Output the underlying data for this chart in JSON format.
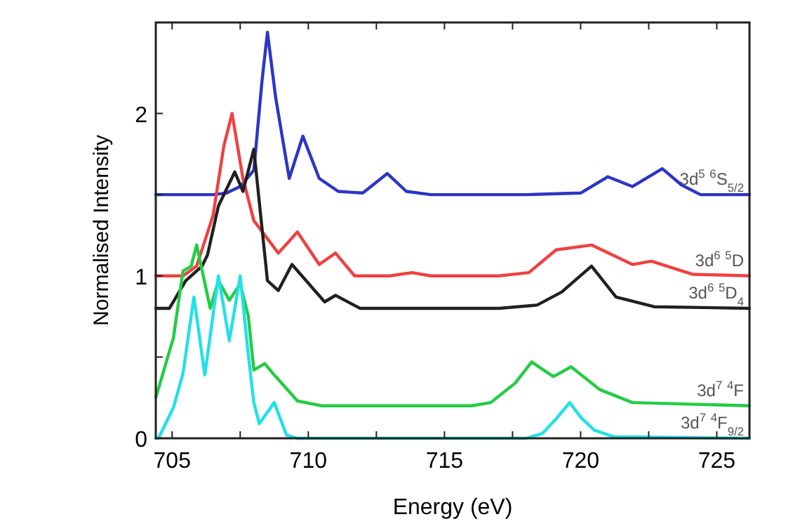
{
  "chart_data": {
    "type": "line",
    "xlabel": "Energy (eV)",
    "ylabel": "Normalised Intensity",
    "xlim": [
      704.4,
      726.2
    ],
    "ylim": [
      0,
      2.56
    ],
    "xticks": [
      705,
      {
        "value": 707.5,
        "label": null
      },
      710,
      {
        "value": 712.5,
        "label": null
      },
      715,
      {
        "value": 717.5,
        "label": null
      },
      720,
      {
        "value": 722.5,
        "label": null
      },
      725
    ],
    "yticks": [
      0,
      {
        "value": 0.5,
        "label": null
      },
      1,
      {
        "value": 1.5,
        "label": null
      },
      2
    ],
    "grid": false,
    "legend": false,
    "marker": "none",
    "line_style": "solid",
    "series": [
      {
        "name": "3d$^{5}$  $^{6}$S$_{5/2}$",
        "color": "#2b35c8",
        "x": [
          704.4,
          706.5,
          707.0,
          707.5,
          708.0,
          708.3,
          708.5,
          708.8,
          709.3,
          709.8,
          710.4,
          711.1,
          712.0,
          712.9,
          713.6,
          714.5,
          718,
          720.0,
          721.0,
          721.9,
          723.0,
          723.7,
          724.4,
          726.2
        ],
        "values": [
          1.5,
          1.5,
          1.51,
          1.55,
          1.65,
          2.2,
          2.5,
          2.1,
          1.6,
          1.86,
          1.6,
          1.52,
          1.51,
          1.63,
          1.52,
          1.5,
          1.5,
          1.51,
          1.61,
          1.55,
          1.66,
          1.56,
          1.5,
          1.5
        ]
      },
      {
        "name": "3d$^{6}$  $^{5}$D",
        "color": "#f04040",
        "x": [
          704.4,
          705.4,
          705.9,
          706.5,
          706.9,
          707.2,
          707.6,
          708.0,
          708.9,
          709.6,
          710.4,
          711.0,
          711.7,
          713.0,
          713.8,
          714.5,
          717.0,
          718.1,
          719.1,
          720.4,
          721.9,
          722.6,
          724.1,
          726.2
        ],
        "values": [
          1.0,
          1.0,
          1.06,
          1.37,
          1.8,
          2.0,
          1.6,
          1.34,
          1.14,
          1.27,
          1.07,
          1.14,
          1.0,
          1.0,
          1.02,
          1.0,
          1.0,
          1.02,
          1.16,
          1.19,
          1.07,
          1.09,
          1.01,
          1.0
        ]
      },
      {
        "name": "3d$^{6}$  $^{5}$D$_{4}$",
        "color": "#202020",
        "x": [
          704.4,
          704.9,
          705.5,
          706.1,
          706.3,
          706.7,
          707.3,
          707.6,
          708.0,
          708.5,
          708.9,
          709.4,
          710.6,
          711.0,
          711.9,
          717.0,
          718.4,
          719.3,
          720.4,
          721.3,
          722.7,
          726.2
        ],
        "values": [
          0.8,
          0.8,
          0.97,
          1.06,
          1.13,
          1.43,
          1.64,
          1.52,
          1.78,
          0.97,
          0.91,
          1.07,
          0.84,
          0.88,
          0.8,
          0.8,
          0.82,
          0.9,
          1.06,
          0.87,
          0.81,
          0.8
        ]
      },
      {
        "name": "3d$^{7}$  $^{4}$F",
        "color": "#22cc44",
        "x": [
          704.4,
          705.05,
          705.4,
          705.7,
          705.9,
          706.4,
          706.7,
          707.1,
          707.5,
          707.8,
          708.0,
          708.4,
          708.75,
          709.6,
          710.5,
          716.0,
          716.7,
          717.6,
          718.2,
          719.0,
          719.65,
          720.7,
          721.9,
          726.2
        ],
        "values": [
          0.25,
          0.62,
          1.03,
          1.06,
          1.19,
          0.8,
          0.97,
          0.85,
          0.95,
          0.75,
          0.42,
          0.46,
          0.39,
          0.23,
          0.2,
          0.2,
          0.22,
          0.34,
          0.47,
          0.38,
          0.44,
          0.3,
          0.22,
          0.2
        ]
      },
      {
        "name": "3d$^{7}$  $^{4}$F$_{9/2}$",
        "color": "#22e0e8",
        "x": [
          704.4,
          704.5,
          705.05,
          705.4,
          705.8,
          706.2,
          706.7,
          707.1,
          707.5,
          707.8,
          708.0,
          708.2,
          708.75,
          709.2,
          709.6,
          718.0,
          718.6,
          719.1,
          719.6,
          720.0,
          720.5,
          721.2,
          726.2
        ],
        "values": [
          0,
          0,
          0.19,
          0.4,
          0.87,
          0.39,
          1.0,
          0.6,
          1.0,
          0.51,
          0.22,
          0.09,
          0.22,
          0.02,
          0,
          0,
          0.03,
          0.12,
          0.22,
          0.13,
          0.05,
          0.01,
          0
        ]
      }
    ]
  }
}
